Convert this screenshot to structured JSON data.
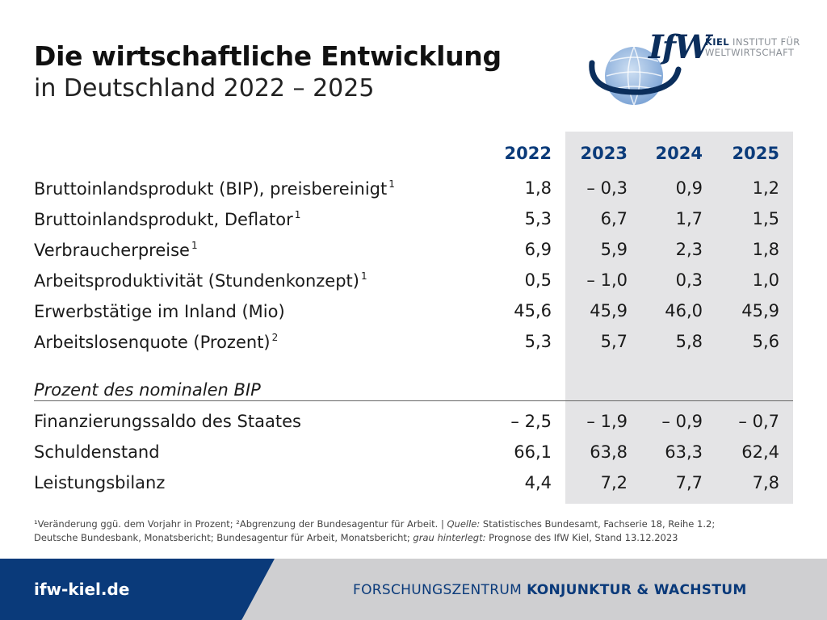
{
  "header": {
    "title": "Die wirtschaftliche Entwicklung",
    "subtitle": "in Deutschland 2022 – 2025"
  },
  "logo": {
    "mark": "IfW",
    "name_bold": "KIEL",
    "name_rest": "INSTITUT FÜR",
    "name_line2": "WELTWIRTSCHAFT"
  },
  "table": {
    "years": [
      "2022",
      "2023",
      "2024",
      "2025"
    ],
    "rows": [
      {
        "label": "Bruttoinlandsprodukt (BIP), preisbereinigt",
        "note": "1",
        "values": [
          "1,8",
          "– 0,3",
          "0,9",
          "1,2"
        ]
      },
      {
        "label": "Bruttoinlandsprodukt, Deflator",
        "note": "1",
        "values": [
          "5,3",
          "6,7",
          "1,7",
          "1,5"
        ]
      },
      {
        "label": "Verbraucherpreise",
        "note": "1",
        "values": [
          "6,9",
          "5,9",
          "2,3",
          "1,8"
        ]
      },
      {
        "label": "Arbeitsproduktivität (Stundenkonzept)",
        "note": "1",
        "values": [
          "0,5",
          "– 1,0",
          "0,3",
          "1,0"
        ]
      },
      {
        "label": "Erwerbstätige im Inland (Mio)",
        "note": "",
        "values": [
          "45,6",
          "45,9",
          "46,0",
          "45,9"
        ]
      },
      {
        "label": "Arbeitslosenquote (Prozent)",
        "note": "2",
        "values": [
          "5,3",
          "5,7",
          "5,8",
          "5,6"
        ]
      }
    ],
    "section_heading": "Prozent des nominalen BIP",
    "section_rows": [
      {
        "label": "Finanzierungssaldo des Staates",
        "values": [
          "– 2,5",
          "– 1,9",
          "– 0,9",
          "– 0,7"
        ]
      },
      {
        "label": "Schuldenstand",
        "values": [
          "66,1",
          "63,8",
          "63,3",
          "62,4"
        ]
      },
      {
        "label": "Leistungsbilanz",
        "values": [
          "4,4",
          "7,2",
          "7,7",
          "7,8"
        ]
      }
    ]
  },
  "footnote": {
    "line1_a": "¹Veränderung ggü. dem Vorjahr in Prozent;  ²Abgrenzung der Bundesagentur für Arbeit. | ",
    "line1_quelle": "Quelle:",
    "line1_b": " Statistisches Bundesamt, Fachserie 18, Reihe 1.2;",
    "line2_a": "Deutsche Bundesbank, Monatsbericht; Bundesagentur für Arbeit, Monatsbericht; ",
    "line2_grau": "grau hinterlegt:",
    "line2_b": " Prognose des IfW Kiel, Stand 13.12.2023"
  },
  "footer": {
    "url": "ifw-kiel.de",
    "tag_light": "FORSCHUNGSZENTRUM",
    "tag_bold": "KONJUNKTUR & WACHSTUM"
  },
  "colors": {
    "accent": "#0b3b7a",
    "shade": "#e4e4e6",
    "footer_blue": "#0a3a7a",
    "footer_gray": "#cfcfd1"
  }
}
